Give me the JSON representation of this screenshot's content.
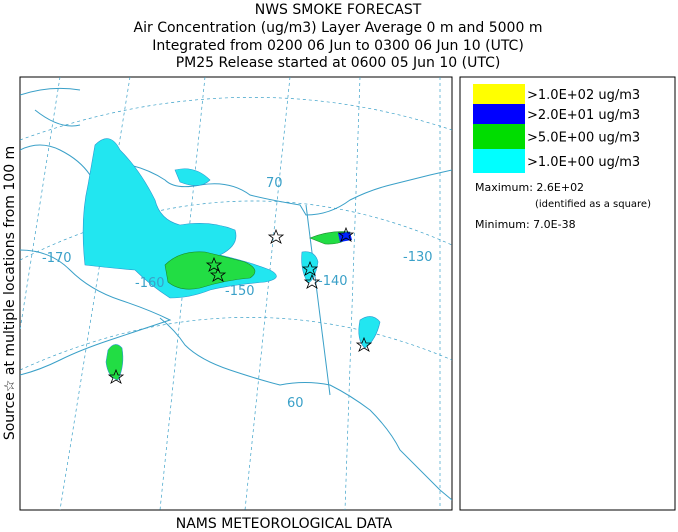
{
  "header": {
    "title": "NWS SMOKE FORECAST",
    "lines": [
      "Air Concentration (ug/m3) Layer Average    0 m and  5000 m",
      "Integrated from 0200 06 Jun to 0300 06 Jun 10 (UTC)",
      "PM25 Release started at 0600 05 Jun 10 (UTC)"
    ]
  },
  "side_label": "Source☆ at multiple locations from  100 m",
  "footer": "NAMS METEOROLOGICAL DATA",
  "map": {
    "labels": [
      "-170",
      "-160",
      "-150",
      "-140",
      "-130",
      "70",
      "60"
    ]
  },
  "legend": {
    "items": [
      {
        "label": ">1.0E+02 ug/m3",
        "color": "#ffff00"
      },
      {
        "label": ">2.0E+01 ug/m3",
        "color": "#0000ff"
      },
      {
        "label": ">5.0E+00 ug/m3",
        "color": "#00dd00"
      },
      {
        "label": ">1.0E+00 ug/m3",
        "color": "#00ffff"
      }
    ],
    "maximum": "Maximum: 2.6E+02",
    "maximum_note": "(identified as a square)",
    "minimum": "Minimum: 7.0E-38"
  }
}
